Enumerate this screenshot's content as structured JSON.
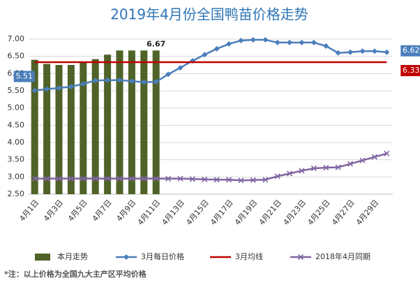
{
  "chart_data": {
    "type": "combo",
    "title": "2019年4月份全国鸭苗价格走势",
    "note": "*注：以上价格为全国九大主产区平均价格",
    "categories": [
      "4月1日",
      null,
      "4月3日",
      null,
      "4月5日",
      null,
      "4月7日",
      null,
      "4月9日",
      null,
      "4月11日",
      null,
      "4月13日",
      null,
      "4月15日",
      null,
      "4月17日",
      null,
      "4月19日",
      null,
      "4月21日",
      null,
      "4月23日",
      null,
      "4月25日",
      null,
      "4月27日",
      null,
      "4月29日",
      null
    ],
    "ylim": [
      2.5,
      7.0
    ],
    "yticks": [
      {
        "value": 2.5,
        "label": "2.50"
      },
      {
        "value": 3.0,
        "label": "3.00"
      },
      {
        "value": 3.5,
        "label": "3.50"
      },
      {
        "value": 4.0,
        "label": "4.00"
      },
      {
        "value": 4.5,
        "label": "4.50"
      },
      {
        "value": 5.0,
        "label": "5.00"
      },
      {
        "value": 5.5,
        "label": "5.50"
      },
      {
        "value": 6.0,
        "label": "6.00"
      },
      {
        "value": 6.5,
        "label": "6.50"
      },
      {
        "value": 7.0,
        "label": "7.00"
      }
    ],
    "grid": true,
    "legend": "bottom",
    "series": [
      {
        "name": "本月走势",
        "type": "bar",
        "color": "#4f6228",
        "values": [
          6.4,
          6.28,
          6.25,
          6.25,
          6.35,
          6.42,
          6.55,
          6.67,
          6.67,
          6.67,
          6.67,
          null,
          null,
          null,
          null,
          null,
          null,
          null,
          null,
          null,
          null,
          null,
          null,
          null,
          null,
          null,
          null,
          null,
          null,
          null
        ],
        "value_labels": [
          null,
          null,
          null,
          null,
          null,
          null,
          null,
          null,
          null,
          null,
          "6.67",
          null,
          null,
          null,
          null,
          null,
          null,
          null,
          null,
          null,
          null,
          null,
          null,
          null,
          null,
          null,
          null,
          null,
          null,
          null
        ]
      },
      {
        "name": "3月每日价格",
        "type": "line",
        "marker": "diamond",
        "color": "#4a7ebb",
        "values": [
          5.51,
          5.55,
          5.58,
          5.62,
          5.7,
          5.8,
          5.81,
          5.81,
          5.78,
          5.75,
          5.76,
          5.98,
          6.17,
          6.37,
          6.55,
          6.72,
          6.86,
          6.96,
          6.98,
          6.98,
          6.9,
          6.9,
          6.9,
          6.9,
          6.8,
          6.6,
          6.62,
          6.65,
          6.65,
          6.62
        ],
        "value_labels": [
          "5.51",
          null,
          null,
          null,
          null,
          null,
          null,
          null,
          null,
          null,
          null,
          null,
          null,
          null,
          null,
          null,
          null,
          null,
          null,
          null,
          null,
          null,
          null,
          null,
          null,
          null,
          null,
          null,
          null,
          "6.62"
        ]
      },
      {
        "name": "3月均线",
        "type": "line",
        "marker": "none",
        "color": "#c00000",
        "values": [
          6.33,
          6.33,
          6.33,
          6.33,
          6.33,
          6.33,
          6.33,
          6.33,
          6.33,
          6.33,
          6.33,
          6.33,
          6.33,
          6.33,
          6.33,
          6.33,
          6.33,
          6.33,
          6.33,
          6.33,
          6.33,
          6.33,
          6.33,
          6.33,
          6.33,
          6.33,
          6.33,
          6.33,
          6.33,
          6.33
        ],
        "value_labels": [
          null,
          null,
          null,
          null,
          null,
          null,
          null,
          null,
          null,
          null,
          null,
          null,
          null,
          null,
          null,
          null,
          null,
          null,
          null,
          null,
          null,
          null,
          null,
          null,
          null,
          null,
          null,
          null,
          null,
          "6.33"
        ]
      },
      {
        "name": "2018年4月同期",
        "type": "line",
        "marker": "x",
        "color": "#8064a2",
        "values": [
          2.95,
          2.95,
          2.95,
          2.95,
          2.95,
          2.95,
          2.95,
          2.95,
          2.95,
          2.95,
          2.95,
          2.95,
          2.95,
          2.94,
          2.93,
          2.92,
          2.92,
          2.9,
          2.91,
          2.92,
          3.02,
          3.1,
          3.18,
          3.25,
          3.27,
          3.28,
          3.38,
          3.48,
          3.58,
          3.68
        ],
        "value_labels": [
          null,
          null,
          null,
          null,
          null,
          null,
          null,
          null,
          null,
          null,
          null,
          null,
          null,
          null,
          null,
          null,
          null,
          null,
          null,
          null,
          null,
          null,
          null,
          null,
          null,
          null,
          null,
          null,
          null,
          null
        ]
      }
    ]
  }
}
